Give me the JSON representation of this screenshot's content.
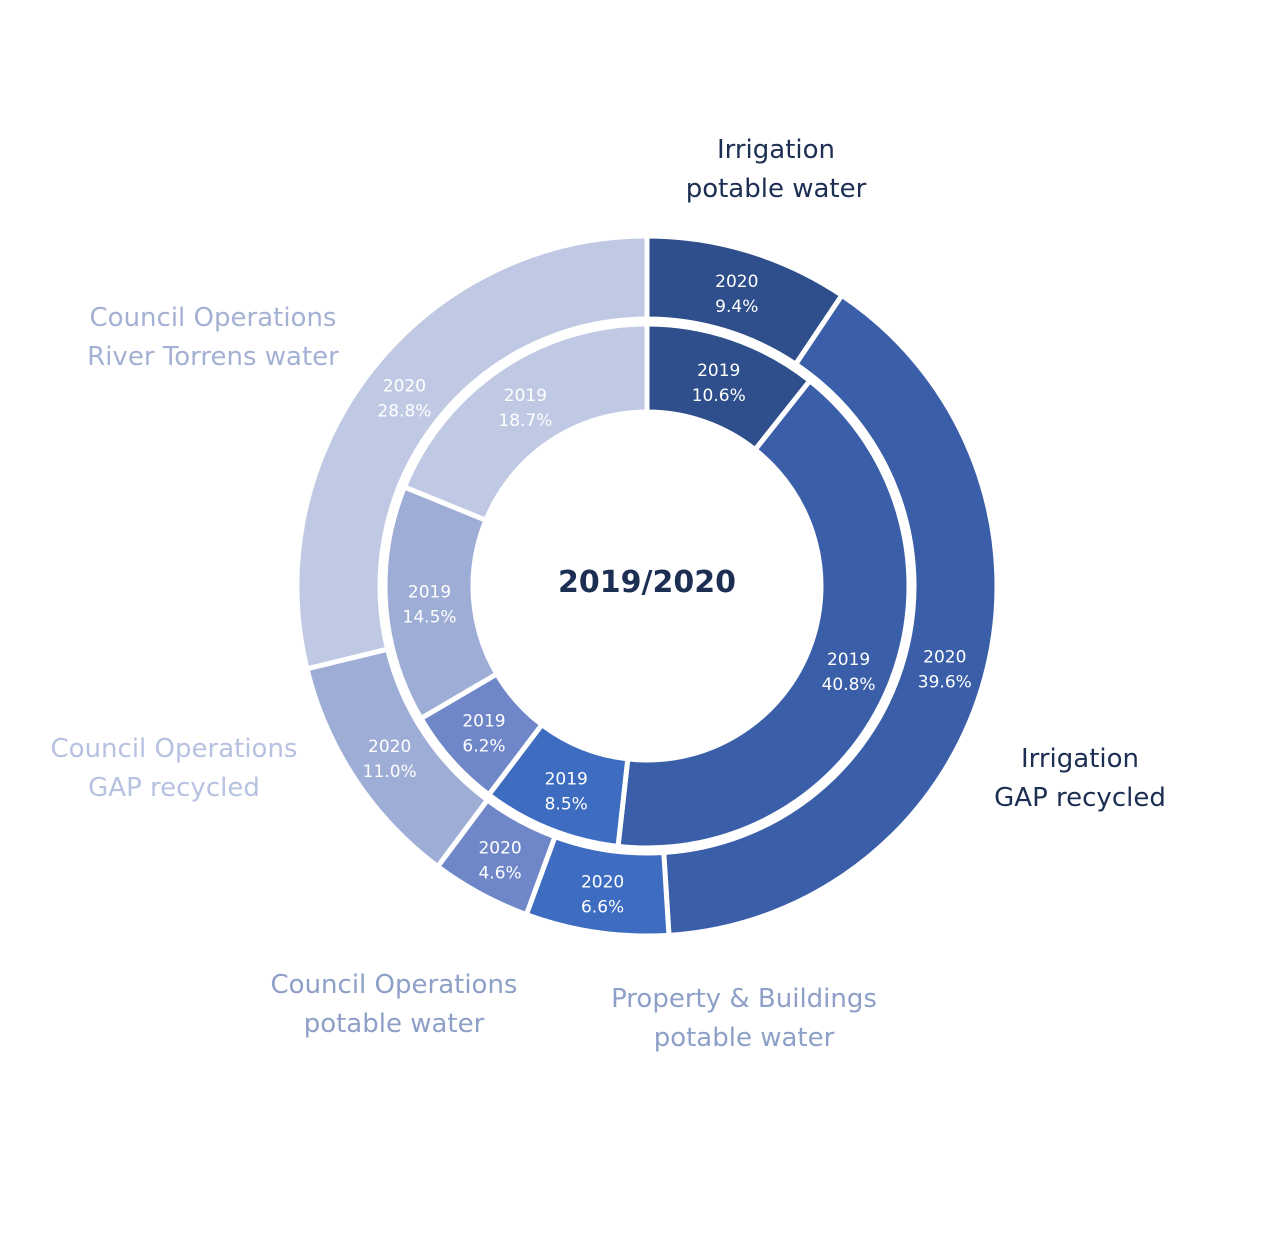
{
  "chart_data": {
    "type": "pie",
    "subtype": "donut",
    "title": "2019/2020",
    "start_angle_deg": 0,
    "direction": "clockwise",
    "categories": [
      {
        "id": "irr_potable",
        "label_lines": [
          "Irrigation",
          "potable water"
        ],
        "color": "#2e4f8c",
        "label_color": "#1c2e52"
      },
      {
        "id": "irr_gap",
        "label_lines": [
          "Irrigation",
          "GAP recycled"
        ],
        "color": "#3a5fa8",
        "label_color": "#1c2e52"
      },
      {
        "id": "pb_potable",
        "label_lines": [
          "Property & Buildings",
          "potable water"
        ],
        "color": "#3d6cc0",
        "label_color": "#8ea0c8"
      },
      {
        "id": "co_potable",
        "label_lines": [
          "Council Operations",
          "potable water"
        ],
        "color": "#6f87c8",
        "label_color": "#8ea0c8"
      },
      {
        "id": "co_gap",
        "label_lines": [
          "Council Operations",
          "GAP recycled"
        ],
        "color": "#9eadd6",
        "label_color": "#b7c2e1"
      },
      {
        "id": "co_river",
        "label_lines": [
          "Council Operations",
          "River Torrens water"
        ],
        "color": "#bfc9e3",
        "label_color": "#a4b1d3"
      }
    ],
    "series": [
      {
        "name": "2019",
        "ring": "inner",
        "values": [
          10.6,
          40.8,
          8.5,
          6.2,
          14.5,
          18.7
        ],
        "labels": [
          "10.6%",
          "40.8%",
          "8.5%",
          "6.2%",
          "14.5%",
          "18.7%"
        ]
      },
      {
        "name": "2020",
        "ring": "outer",
        "values": [
          9.4,
          39.6,
          6.6,
          4.6,
          11.0,
          28.8
        ],
        "labels": [
          "9.4%",
          "39.6%",
          "6.6%",
          "4.6%",
          "11.0%",
          "28.8%"
        ]
      }
    ]
  }
}
